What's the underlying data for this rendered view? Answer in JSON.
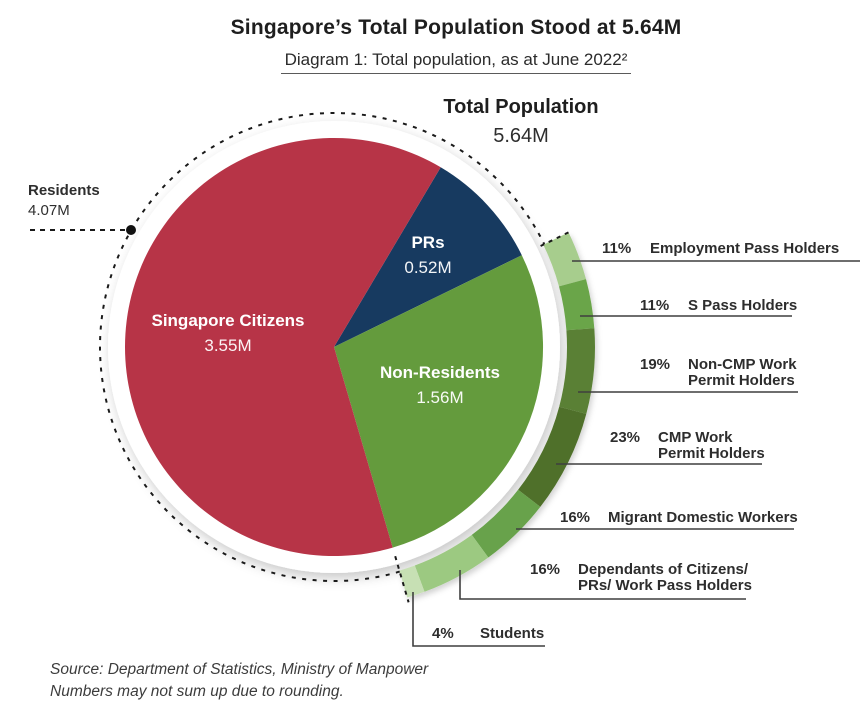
{
  "header": {
    "title": "Singapore’s Total Population Stood at 5.64M",
    "subtitle": "Diagram 1: Total population, as at June 2022²"
  },
  "chart_data": {
    "type": "pie",
    "title": "Singapore’s Total Population Stood at 5.64M",
    "total_label": "Total Population",
    "total_value": "5.64M",
    "total_value_millions": 5.64,
    "start_angle_deg": 30.7,
    "slices": [
      {
        "name": "PRs",
        "value": 0.52,
        "display": "0.52M",
        "color": "#173A60"
      },
      {
        "name": "Non-Residents",
        "value": 1.56,
        "display": "1.56M",
        "color": "#649B3D"
      },
      {
        "name": "Singapore Citizens",
        "value": 3.55,
        "display": "3.55M",
        "color": "#B73447"
      }
    ],
    "residents": {
      "label": "Residents",
      "display": "4.07M",
      "value": 4.07
    },
    "breakdown": [
      {
        "pct": "11%",
        "value": 11,
        "label": "Employment Pass Holders",
        "color": "#A7CD8D"
      },
      {
        "pct": "11%",
        "value": 11,
        "label": "S Pass Holders",
        "color": "#6BA54A"
      },
      {
        "pct": "19%",
        "value": 19,
        "label": "Non-CMP Work Permit Holders",
        "color": "#5A8034"
      },
      {
        "pct": "23%",
        "value": 23,
        "label": "CMP Work Permit Holders",
        "color": "#4F7029"
      },
      {
        "pct": "16%",
        "value": 16,
        "label": "Migrant Domestic Workers",
        "color": "#67A24B"
      },
      {
        "pct": "16%",
        "value": 16,
        "label": "Dependants of Citizens/ PRs/ Work Pass Holders",
        "color": "#9CC981"
      },
      {
        "pct": "4%",
        "value": 4,
        "label": "Students",
        "color": "#C7E0B4"
      }
    ],
    "legend_position": "right",
    "colors": {
      "citizens": "#B73447",
      "prs": "#173A60",
      "non_residents": "#649B3D",
      "line": "#3f3f3f",
      "dash": "#1a1a1a"
    }
  },
  "footer": {
    "source": "Source: Department of Statistics, Ministry of Manpower",
    "note": "Numbers may not sum up due to rounding."
  }
}
